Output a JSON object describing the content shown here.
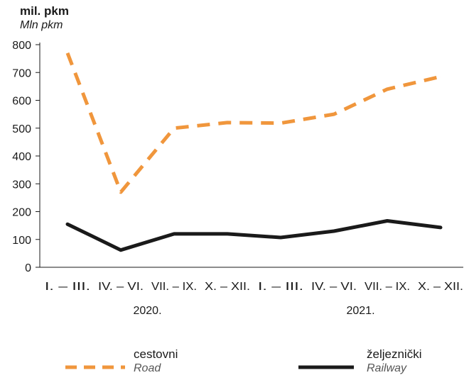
{
  "chart_data": {
    "type": "line",
    "ylabel": "mil. pkm",
    "ylabel_secondary": "Mln pkm",
    "ylim": [
      0,
      800
    ],
    "yticks": [
      0,
      100,
      200,
      300,
      400,
      500,
      600,
      700,
      800
    ],
    "grid": false,
    "legend_position": "bottom",
    "categories": [
      "I. – III.",
      "IV. – VI.",
      "VII. – IX.",
      "X. – XII.",
      "I. – III.",
      "IV. – VI.",
      "VII. – IX.",
      "X. – XII."
    ],
    "year_groups": [
      {
        "label": "2020.",
        "span": [
          0,
          3
        ]
      },
      {
        "label": "2021.",
        "span": [
          4,
          7
        ]
      }
    ],
    "series": [
      {
        "name": "cestovni",
        "name_secondary": "Road",
        "color": "#f0963c",
        "style": "dashed",
        "values": [
          770,
          270,
          500,
          520,
          518,
          550,
          640,
          685
        ]
      },
      {
        "name": "željeznički",
        "name_secondary": "Railway",
        "color": "#1a1a1a",
        "style": "solid",
        "values": [
          155,
          62,
          120,
          120,
          107,
          130,
          167,
          143
        ]
      }
    ]
  }
}
